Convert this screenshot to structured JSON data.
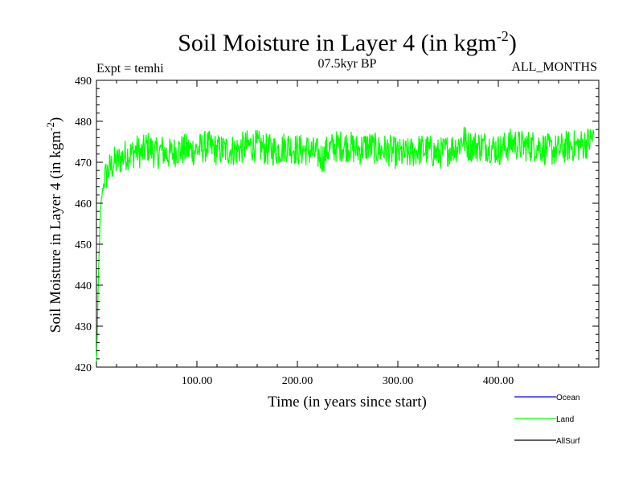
{
  "title": {
    "main": "Soil Moisture in Layer 4 (in kgm",
    "sup": "-2",
    "close": ")"
  },
  "top_left": "Expt = temhi",
  "top_center": "07.5kyr BP",
  "top_right": "ALL_MONTHS",
  "colors": {
    "ocean": "#0000ff",
    "land": "#00ff00",
    "allsurf": "#000000"
  },
  "chart_data": {
    "type": "line",
    "title": "Soil Moisture in Layer 4 (in kgm-2)",
    "xlabel": "Time (in years since start)",
    "ylabel": "Soil Moisture in Layer 4 (in kgm-2)",
    "xlim": [
      0,
      500
    ],
    "ylim": [
      420,
      490
    ],
    "xticks": [
      "100.00",
      "200.00",
      "300.00",
      "400.00"
    ],
    "xtick_values": [
      100,
      200,
      300,
      400
    ],
    "yticks": [
      "420",
      "430",
      "440",
      "450",
      "460",
      "470",
      "480",
      "490"
    ],
    "ytick_values": [
      420,
      430,
      440,
      450,
      460,
      470,
      480,
      490
    ],
    "legend": [
      {
        "name": "Ocean",
        "color": "#0000ff"
      },
      {
        "name": "Land",
        "color": "#00ff00"
      },
      {
        "name": "AllSurf",
        "color": "#000000"
      }
    ],
    "series": [
      {
        "name": "Land",
        "color": "#00ff00",
        "x": [
          0,
          1,
          2,
          3,
          4,
          5,
          6,
          8,
          10,
          12,
          15,
          18,
          20,
          25,
          30,
          35,
          40,
          45,
          50,
          55,
          60,
          65,
          70,
          75,
          80,
          90,
          100,
          110,
          120,
          130,
          140,
          150,
          160,
          170,
          180,
          190,
          200,
          210,
          220,
          225,
          230,
          240,
          250,
          260,
          270,
          280,
          290,
          300,
          310,
          320,
          330,
          340,
          350,
          360,
          365,
          370,
          380,
          390,
          400,
          410,
          415,
          420,
          430,
          440,
          450,
          460,
          470,
          480,
          490,
          495
        ],
        "values": [
          421,
          430,
          442,
          451,
          457,
          461,
          463,
          466,
          467,
          468,
          469,
          470,
          470,
          471,
          472,
          472,
          473,
          472,
          474,
          473,
          472,
          473,
          472,
          472,
          473,
          473,
          473,
          474,
          473,
          473,
          473,
          474,
          474,
          473,
          473,
          474,
          473,
          473,
          472,
          471,
          473,
          474,
          474,
          473,
          474,
          473,
          473,
          472,
          472,
          473,
          473,
          472,
          473,
          474,
          476,
          474,
          474,
          474,
          473,
          474,
          475,
          474,
          474,
          474,
          473,
          473,
          474,
          474,
          475,
          476
        ],
        "noise_amplitude": 4
      }
    ]
  }
}
